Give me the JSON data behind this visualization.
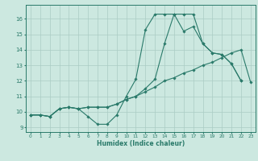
{
  "xlabel": "Humidex (Indice chaleur)",
  "background_color": "#cce8e0",
  "grid_color": "#aaccc4",
  "line_color": "#2a7a6a",
  "xlim": [
    -0.5,
    23.5
  ],
  "ylim": [
    8.7,
    16.9
  ],
  "xticks": [
    0,
    1,
    2,
    3,
    4,
    5,
    6,
    7,
    8,
    9,
    10,
    11,
    12,
    13,
    14,
    15,
    16,
    17,
    18,
    19,
    20,
    21,
    22,
    23
  ],
  "yticks": [
    9,
    10,
    11,
    12,
    13,
    14,
    15,
    16
  ],
  "series1_x": [
    0,
    1,
    2,
    3,
    4,
    5,
    6,
    7,
    8,
    9,
    10,
    11,
    12,
    13,
    14,
    15,
    16,
    17,
    18,
    19,
    20,
    21,
    22
  ],
  "series1_y": [
    9.8,
    9.8,
    9.7,
    10.2,
    10.3,
    10.2,
    9.7,
    9.2,
    9.2,
    9.8,
    11.0,
    12.1,
    15.3,
    16.3,
    16.3,
    16.3,
    15.2,
    15.5,
    14.4,
    13.8,
    13.7,
    13.1,
    12.0
  ],
  "series2_x": [
    0,
    1,
    2,
    3,
    4,
    5,
    6,
    7,
    8,
    9,
    10,
    11,
    12,
    13,
    14,
    15,
    16,
    17,
    18,
    19,
    20,
    21,
    22,
    23
  ],
  "series2_y": [
    9.8,
    9.8,
    9.7,
    10.2,
    10.3,
    10.2,
    10.3,
    10.3,
    10.3,
    10.5,
    10.8,
    11.0,
    11.3,
    11.6,
    12.0,
    12.2,
    12.5,
    12.7,
    13.0,
    13.2,
    13.5,
    13.8,
    14.0,
    11.9
  ],
  "series3_x": [
    0,
    1,
    2,
    3,
    4,
    5,
    6,
    7,
    8,
    9,
    10,
    11,
    12,
    13,
    14,
    15,
    16,
    17,
    18,
    19,
    20,
    21,
    22
  ],
  "series3_y": [
    9.8,
    9.8,
    9.7,
    10.2,
    10.3,
    10.2,
    10.3,
    10.3,
    10.3,
    10.5,
    10.8,
    11.0,
    11.5,
    12.1,
    14.4,
    16.3,
    16.3,
    16.3,
    14.4,
    13.8,
    13.7,
    13.1,
    12.0
  ]
}
